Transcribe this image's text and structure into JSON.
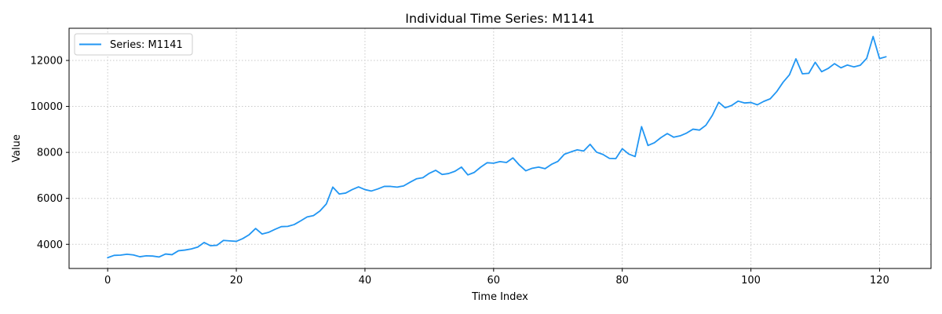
{
  "chart_data": {
    "type": "line",
    "title": "Individual Time Series: M1141",
    "xlabel": "Time Index",
    "ylabel": "Value",
    "xlim": [
      -6,
      128
    ],
    "ylim": [
      2950,
      13400
    ],
    "xticks": [
      0,
      20,
      40,
      60,
      80,
      100,
      120
    ],
    "yticks": [
      4000,
      6000,
      8000,
      10000,
      12000
    ],
    "grid": true,
    "legend_position": "top-left",
    "series": [
      {
        "name": "Series: M1141",
        "color": "#2196f3",
        "x_start": 0,
        "x_step": 1,
        "values": [
          3420,
          3520,
          3530,
          3570,
          3540,
          3460,
          3500,
          3490,
          3450,
          3580,
          3550,
          3720,
          3750,
          3800,
          3880,
          4080,
          3940,
          3960,
          4170,
          4150,
          4130,
          4250,
          4420,
          4690,
          4450,
          4520,
          4650,
          4770,
          4780,
          4860,
          5020,
          5190,
          5250,
          5450,
          5760,
          6490,
          6190,
          6230,
          6380,
          6500,
          6380,
          6320,
          6410,
          6520,
          6520,
          6490,
          6540,
          6700,
          6850,
          6900,
          7090,
          7220,
          7040,
          7080,
          7180,
          7360,
          7020,
          7130,
          7360,
          7550,
          7530,
          7600,
          7560,
          7760,
          7450,
          7200,
          7310,
          7360,
          7290,
          7480,
          7610,
          7920,
          8020,
          8110,
          8060,
          8350,
          8010,
          7910,
          7740,
          7730,
          8160,
          7930,
          7820,
          9120,
          8300,
          8420,
          8640,
          8820,
          8660,
          8720,
          8840,
          9010,
          8970,
          9180,
          9610,
          10180,
          9940,
          10040,
          10230,
          10150,
          10170,
          10070,
          10220,
          10330,
          10640,
          11050,
          11380,
          12070,
          11420,
          11440,
          11920,
          11510,
          11650,
          11860,
          11680,
          11800,
          11720,
          11790,
          12090,
          13040,
          12080,
          12160
        ]
      }
    ]
  }
}
